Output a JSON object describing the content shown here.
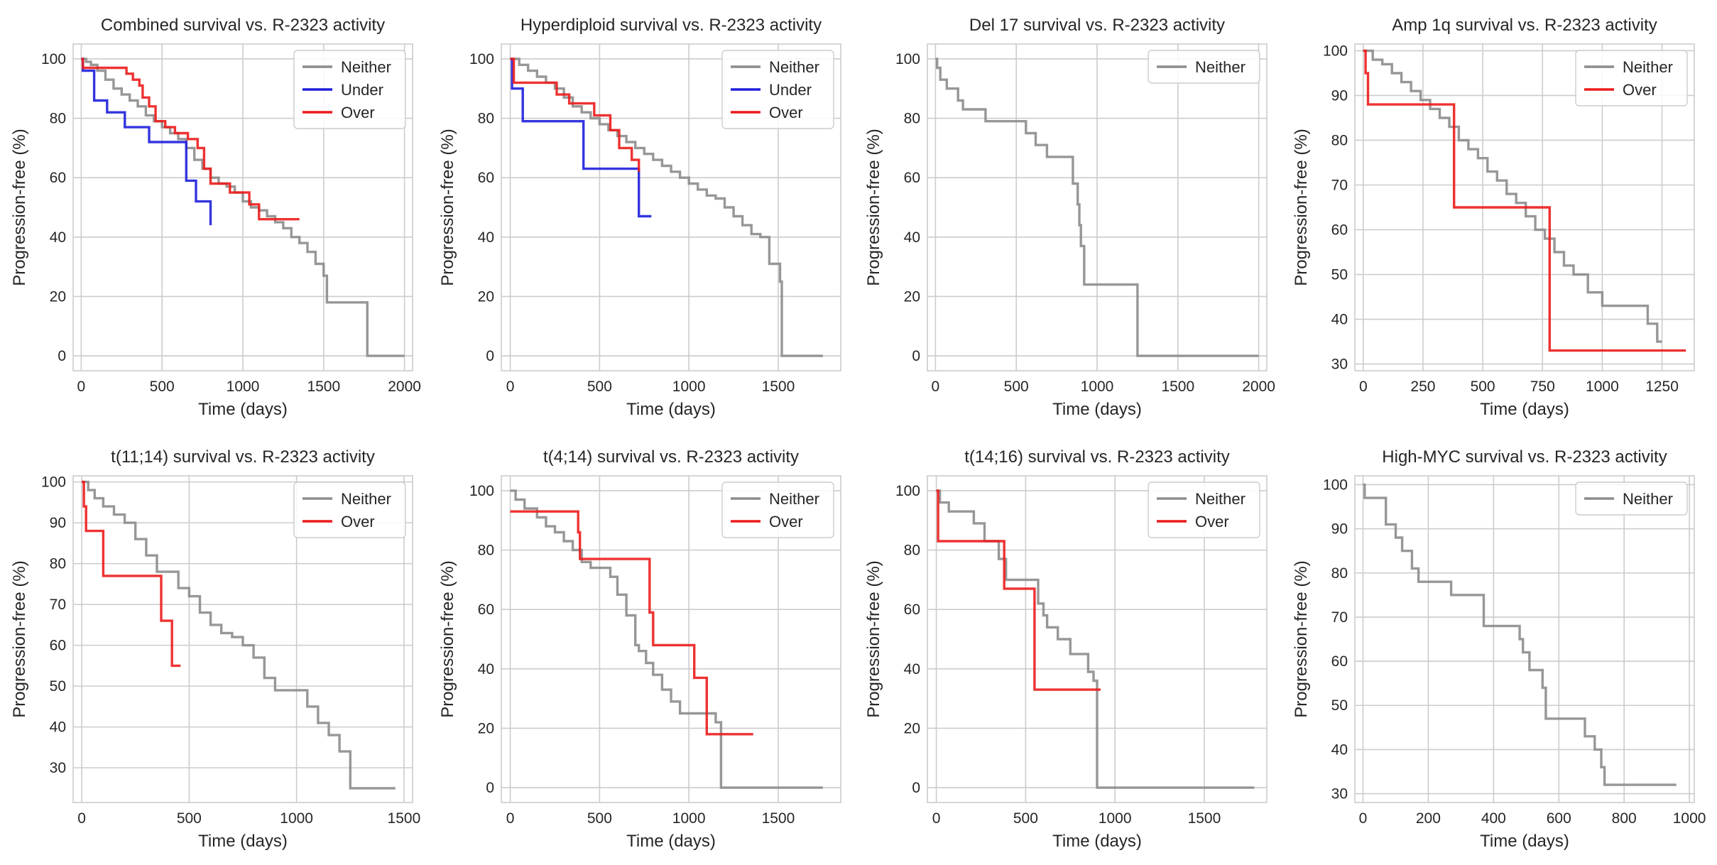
{
  "colors": {
    "Neither": "#8c8c8c",
    "Under": "#1f1fdc",
    "Over": "#ec1c1c"
  },
  "chart_data": [
    {
      "type": "line",
      "title": "Combined survival vs. R-2323 activity",
      "xlabel": "Time (days)",
      "ylabel": "Progression-free (%)",
      "xlim": [
        -50,
        2050
      ],
      "ylim": [
        -5,
        105
      ],
      "xticks": [
        0,
        500,
        1000,
        1500,
        2000
      ],
      "yticks": [
        0,
        20,
        40,
        60,
        80,
        100
      ],
      "legend": "top-right",
      "grid": true,
      "series": [
        {
          "name": "Neither",
          "x": [
            0,
            30,
            60,
            100,
            150,
            200,
            250,
            300,
            350,
            400,
            450,
            500,
            550,
            600,
            650,
            700,
            750,
            800,
            850,
            900,
            950,
            1000,
            1050,
            1100,
            1150,
            1200,
            1250,
            1300,
            1350,
            1400,
            1450,
            1500,
            1520,
            1760,
            1770,
            2000
          ],
          "y": [
            100,
            99,
            98,
            96,
            93,
            90,
            88,
            86,
            84,
            81,
            79,
            77,
            75,
            73,
            70,
            66,
            63,
            60,
            58,
            57,
            55,
            52,
            50,
            49,
            47,
            45,
            43,
            40,
            38,
            35,
            31,
            27,
            18,
            18,
            0,
            0
          ]
        },
        {
          "name": "Under",
          "x": [
            0,
            10,
            60,
            80,
            160,
            270,
            420,
            640,
            650,
            710,
            800
          ],
          "y": [
            100,
            96,
            96,
            86,
            82,
            77,
            72,
            72,
            59,
            52,
            44
          ]
        },
        {
          "name": "Over",
          "x": [
            0,
            10,
            280,
            320,
            360,
            380,
            420,
            460,
            520,
            580,
            660,
            720,
            760,
            800,
            920,
            1040,
            1100,
            1350
          ],
          "y": [
            100,
            97,
            95,
            93,
            91,
            87,
            84,
            79,
            77,
            75,
            73,
            70,
            63,
            58,
            55,
            51,
            46,
            46
          ]
        }
      ]
    },
    {
      "type": "line",
      "title": "Hyperdiploid survival vs. R-2323 activity",
      "xlabel": "Time (days)",
      "ylabel": "Progression-free (%)",
      "xlim": [
        -50,
        1850
      ],
      "ylim": [
        -5,
        105
      ],
      "xticks": [
        0,
        500,
        1000,
        1500
      ],
      "yticks": [
        0,
        20,
        40,
        60,
        80,
        100
      ],
      "legend": "top-right",
      "grid": true,
      "series": [
        {
          "name": "Neither",
          "x": [
            0,
            50,
            100,
            150,
            200,
            250,
            300,
            350,
            400,
            450,
            500,
            550,
            600,
            650,
            700,
            750,
            800,
            850,
            900,
            950,
            1000,
            1050,
            1100,
            1150,
            1200,
            1250,
            1300,
            1350,
            1400,
            1450,
            1490,
            1510,
            1520,
            1750
          ],
          "y": [
            100,
            98,
            96,
            94,
            92,
            90,
            87,
            84,
            82,
            80,
            78,
            76,
            74,
            72,
            70,
            68,
            66,
            64,
            62,
            60,
            58,
            56,
            54,
            53,
            50,
            47,
            44,
            41,
            40,
            31,
            31,
            25,
            0,
            0
          ]
        },
        {
          "name": "Under",
          "x": [
            0,
            10,
            70,
            410,
            710,
            720,
            790
          ],
          "y": [
            100,
            90,
            79,
            63,
            63,
            47,
            47
          ]
        },
        {
          "name": "Over",
          "x": [
            0,
            20,
            260,
            330,
            470,
            560,
            610,
            680,
            720
          ],
          "y": [
            100,
            92,
            88,
            85,
            81,
            76,
            70,
            66,
            62
          ]
        }
      ]
    },
    {
      "type": "line",
      "title": "Del 17 survival vs. R-2323 activity",
      "xlabel": "Time (days)",
      "ylabel": "Progression-free (%)",
      "xlim": [
        -50,
        2050
      ],
      "ylim": [
        -5,
        105
      ],
      "xticks": [
        0,
        500,
        1000,
        1500,
        2000
      ],
      "yticks": [
        0,
        20,
        40,
        60,
        80,
        100
      ],
      "legend": "top-right",
      "grid": true,
      "series": [
        {
          "name": "Neither",
          "x": [
            0,
            10,
            30,
            70,
            140,
            170,
            310,
            560,
            620,
            690,
            850,
            880,
            890,
            900,
            920,
            1250,
            2000
          ],
          "y": [
            100,
            97,
            93,
            90,
            86,
            83,
            79,
            75,
            71,
            67,
            58,
            51,
            44,
            37,
            24,
            0,
            0
          ]
        }
      ]
    },
    {
      "type": "line",
      "title": "Amp 1q survival vs. R-2323 activity",
      "xlabel": "Time (days)",
      "ylabel": "Progression-free (%)",
      "xlim": [
        -35,
        1385
      ],
      "ylim": [
        28.5,
        101.5
      ],
      "xticks": [
        0,
        250,
        500,
        750,
        1000,
        1250
      ],
      "yticks": [
        30,
        40,
        50,
        60,
        70,
        80,
        90,
        100
      ],
      "legend": "top-right",
      "grid": true,
      "series": [
        {
          "name": "Neither",
          "x": [
            0,
            40,
            80,
            120,
            160,
            200,
            240,
            280,
            320,
            360,
            400,
            440,
            480,
            520,
            560,
            600,
            640,
            680,
            720,
            760,
            800,
            840,
            880,
            940,
            1000,
            1060,
            1120,
            1190,
            1230,
            1250
          ],
          "y": [
            100,
            98,
            97,
            95,
            93,
            91,
            89,
            87,
            85,
            83,
            80,
            78,
            76,
            73,
            71,
            68,
            66,
            63,
            60,
            58,
            55,
            52,
            50,
            46,
            43,
            43,
            43,
            39,
            35,
            35
          ]
        },
        {
          "name": "Over",
          "x": [
            0,
            10,
            20,
            370,
            380,
            760,
            780,
            1350
          ],
          "y": [
            100,
            95,
            88,
            88,
            65,
            65,
            33,
            33
          ]
        }
      ]
    },
    {
      "type": "line",
      "title": "t(11;14) survival vs. R-2323 activity",
      "xlabel": "Time (days)",
      "ylabel": "Progression-free (%)",
      "xlim": [
        -40,
        1540
      ],
      "ylim": [
        21.5,
        101.5
      ],
      "xticks": [
        0,
        500,
        1000,
        1500
      ],
      "yticks": [
        30,
        40,
        50,
        60,
        70,
        80,
        90,
        100
      ],
      "legend": "top-right",
      "grid": true,
      "series": [
        {
          "name": "Neither",
          "x": [
            0,
            30,
            60,
            100,
            150,
            200,
            250,
            300,
            350,
            400,
            450,
            500,
            550,
            600,
            650,
            700,
            750,
            800,
            850,
            900,
            1000,
            1050,
            1100,
            1150,
            1200,
            1250,
            1460
          ],
          "y": [
            100,
            98,
            96,
            94,
            92,
            90,
            86,
            82,
            78,
            78,
            74,
            72,
            68,
            65,
            63,
            62,
            60,
            57,
            52,
            49,
            49,
            45,
            41,
            38,
            34,
            25,
            25
          ]
        },
        {
          "name": "Over",
          "x": [
            0,
            10,
            20,
            100,
            370,
            420,
            460
          ],
          "y": [
            100,
            94,
            88,
            77,
            66,
            55,
            55
          ]
        }
      ]
    },
    {
      "type": "line",
      "title": "t(4;14) survival vs. R-2323 activity",
      "xlabel": "Time (days)",
      "ylabel": "Progression-free (%)",
      "xlim": [
        -50,
        1850
      ],
      "ylim": [
        -5,
        105
      ],
      "xticks": [
        0,
        500,
        1000,
        1500
      ],
      "yticks": [
        0,
        20,
        40,
        60,
        80,
        100
      ],
      "legend": "top-right",
      "grid": true,
      "series": [
        {
          "name": "Neither",
          "x": [
            0,
            30,
            80,
            150,
            200,
            250,
            300,
            350,
            400,
            450,
            500,
            560,
            600,
            650,
            700,
            720,
            760,
            800,
            850,
            900,
            950,
            1000,
            1150,
            1180,
            1750
          ],
          "y": [
            100,
            97,
            94,
            91,
            88,
            86,
            83,
            80,
            76,
            74,
            74,
            71,
            65,
            58,
            48,
            46,
            42,
            38,
            33,
            29,
            25,
            25,
            22,
            0,
            0
          ]
        },
        {
          "name": "Over",
          "x": [
            0,
            380,
            390,
            760,
            780,
            800,
            1030,
            1100,
            1360
          ],
          "y": [
            93,
            86,
            77,
            77,
            59,
            48,
            37,
            18,
            18
          ]
        }
      ]
    },
    {
      "type": "line",
      "title": "t(14;16) survival vs. R-2323 activity",
      "xlabel": "Time (days)",
      "ylabel": "Progression-free (%)",
      "xlim": [
        -50,
        1850
      ],
      "ylim": [
        -5,
        105
      ],
      "xticks": [
        0,
        500,
        1000,
        1500
      ],
      "yticks": [
        0,
        20,
        40,
        60,
        80,
        100
      ],
      "legend": "top-right",
      "grid": true,
      "series": [
        {
          "name": "Neither",
          "x": [
            0,
            20,
            70,
            210,
            270,
            350,
            390,
            550,
            570,
            600,
            620,
            680,
            750,
            850,
            880,
            900,
            1780
          ],
          "y": [
            100,
            96,
            93,
            89,
            83,
            77,
            70,
            70,
            62,
            58,
            54,
            50,
            45,
            39,
            36,
            0,
            0
          ]
        },
        {
          "name": "Over",
          "x": [
            0,
            10,
            370,
            380,
            540,
            550,
            920
          ],
          "y": [
            100,
            83,
            83,
            67,
            67,
            33,
            33
          ]
        }
      ]
    },
    {
      "type": "line",
      "title": "High-MYC survival vs. R-2323 activity",
      "xlabel": "Time (days)",
      "ylabel": "Progression-free (%)",
      "xlim": [
        -25,
        1015
      ],
      "ylim": [
        28,
        102
      ],
      "xticks": [
        0,
        200,
        400,
        600,
        800,
        1000
      ],
      "yticks": [
        30,
        40,
        50,
        60,
        70,
        80,
        90,
        100
      ],
      "legend": "top-right",
      "grid": true,
      "series": [
        {
          "name": "Neither",
          "x": [
            0,
            5,
            70,
            100,
            120,
            150,
            170,
            270,
            370,
            480,
            490,
            510,
            550,
            560,
            680,
            710,
            730,
            740,
            960
          ],
          "y": [
            100,
            97,
            91,
            88,
            85,
            81,
            78,
            75,
            68,
            65,
            62,
            58,
            54,
            47,
            43,
            40,
            36,
            32,
            32
          ]
        }
      ]
    }
  ]
}
